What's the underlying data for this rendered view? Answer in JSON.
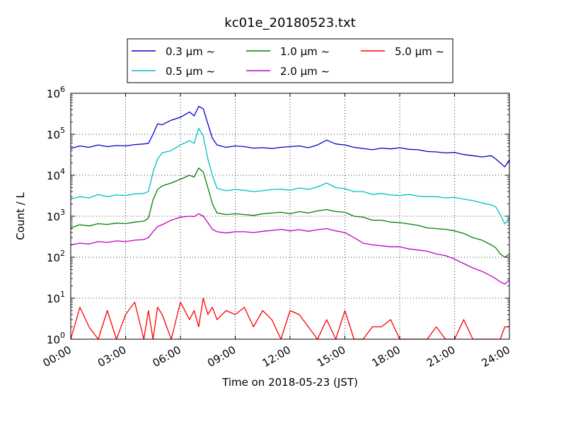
{
  "chart_data": {
    "type": "line",
    "title": "kc01e_20180523.txt",
    "xlabel": "Time on 2018-05-23 (JST)",
    "ylabel": "Count / L",
    "xlim": [
      0,
      24
    ],
    "ylim": [
      1,
      1000000
    ],
    "yscale": "log",
    "grid": true,
    "legend_position": "top",
    "xticks": [
      {
        "value": 0,
        "label": "00:00"
      },
      {
        "value": 3,
        "label": "03:00"
      },
      {
        "value": 6,
        "label": "06:00"
      },
      {
        "value": 9,
        "label": "09:00"
      },
      {
        "value": 12,
        "label": "12:00"
      },
      {
        "value": 15,
        "label": "15:00"
      },
      {
        "value": 18,
        "label": "18:00"
      },
      {
        "value": 21,
        "label": "21:00"
      },
      {
        "value": 24,
        "label": "24:00"
      }
    ],
    "yticks": [
      {
        "value": 1,
        "base": "10",
        "exp": "0"
      },
      {
        "value": 10,
        "base": "10",
        "exp": "1"
      },
      {
        "value": 100,
        "base": "10",
        "exp": "2"
      },
      {
        "value": 1000,
        "base": "10",
        "exp": "3"
      },
      {
        "value": 10000,
        "base": "10",
        "exp": "4"
      },
      {
        "value": 100000,
        "base": "10",
        "exp": "5"
      },
      {
        "value": 1000000,
        "base": "10",
        "exp": "6"
      }
    ],
    "series": [
      {
        "name": "0.3 μm ~",
        "color": "#0000cc",
        "x": [
          0,
          0.5,
          1,
          1.5,
          2,
          2.5,
          3,
          3.5,
          4,
          4.25,
          4.5,
          4.75,
          5,
          5.5,
          6,
          6.5,
          6.75,
          7,
          7.25,
          7.5,
          7.75,
          8,
          8.5,
          9,
          9.5,
          10,
          10.5,
          11,
          11.5,
          12,
          12.5,
          13,
          13.5,
          14,
          14.5,
          15,
          15.5,
          16,
          16.5,
          17,
          17.5,
          18,
          18.5,
          19,
          19.5,
          20,
          20.5,
          21,
          21.5,
          22,
          22.5,
          23,
          23.25,
          23.5,
          23.75,
          24
        ],
        "y": [
          45000,
          52000,
          48000,
          55000,
          50000,
          53000,
          52000,
          56000,
          58000,
          60000,
          100000,
          180000,
          170000,
          220000,
          260000,
          350000,
          280000,
          480000,
          420000,
          180000,
          80000,
          55000,
          48000,
          52000,
          50000,
          46000,
          47000,
          45000,
          48000,
          50000,
          52000,
          47000,
          55000,
          72000,
          58000,
          55000,
          48000,
          45000,
          42000,
          46000,
          44000,
          47000,
          43000,
          42000,
          38000,
          37000,
          35000,
          36000,
          32000,
          30000,
          28000,
          30000,
          25000,
          20000,
          16000,
          24000
        ]
      },
      {
        "name": "0.5 μm ~",
        "color": "#00bfbf",
        "x": [
          0,
          0.5,
          1,
          1.5,
          2,
          2.5,
          3,
          3.5,
          4,
          4.25,
          4.5,
          4.75,
          5,
          5.5,
          6,
          6.5,
          6.75,
          7,
          7.25,
          7.5,
          7.75,
          8,
          8.5,
          9,
          9.5,
          10,
          10.5,
          11,
          11.5,
          12,
          12.5,
          13,
          13.5,
          14,
          14.5,
          15,
          15.5,
          16,
          16.5,
          17,
          17.5,
          18,
          18.5,
          19,
          19.5,
          20,
          20.5,
          21,
          21.5,
          22,
          22.5,
          23,
          23.25,
          23.5,
          23.75,
          24
        ],
        "y": [
          2600,
          3000,
          2800,
          3400,
          3000,
          3300,
          3200,
          3500,
          3600,
          4000,
          12000,
          25000,
          35000,
          40000,
          55000,
          70000,
          60000,
          140000,
          90000,
          25000,
          10000,
          4800,
          4200,
          4500,
          4300,
          4000,
          4200,
          4500,
          4600,
          4300,
          4900,
          4500,
          5200,
          6500,
          5000,
          4700,
          4000,
          4000,
          3400,
          3600,
          3300,
          3200,
          3400,
          3100,
          3000,
          3000,
          2800,
          2900,
          2600,
          2400,
          2100,
          1900,
          1700,
          1100,
          650,
          900
        ]
      },
      {
        "name": "1.0 μm ~",
        "color": "#008000",
        "x": [
          0,
          0.5,
          1,
          1.5,
          2,
          2.5,
          3,
          3.5,
          4,
          4.25,
          4.5,
          4.75,
          5,
          5.5,
          6,
          6.5,
          6.75,
          7,
          7.25,
          7.5,
          7.75,
          8,
          8.5,
          9,
          9.5,
          10,
          10.5,
          11,
          11.5,
          12,
          12.5,
          13,
          13.5,
          14,
          14.5,
          15,
          15.5,
          16,
          16.5,
          17,
          17.5,
          18,
          18.5,
          19,
          19.5,
          20,
          20.5,
          21,
          21.5,
          22,
          22.5,
          23,
          23.25,
          23.5,
          23.75,
          24
        ],
        "y": [
          520,
          620,
          580,
          660,
          630,
          680,
          660,
          720,
          760,
          900,
          2500,
          4500,
          5500,
          6500,
          8000,
          10000,
          9000,
          15000,
          12000,
          5000,
          2000,
          1200,
          1100,
          1150,
          1100,
          1050,
          1150,
          1200,
          1250,
          1150,
          1300,
          1200,
          1350,
          1450,
          1300,
          1250,
          1000,
          950,
          800,
          800,
          720,
          700,
          650,
          600,
          520,
          500,
          480,
          440,
          380,
          300,
          260,
          200,
          170,
          120,
          100,
          120
        ]
      },
      {
        "name": "2.0 μm ~",
        "color": "#bf00bf",
        "x": [
          0,
          0.5,
          1,
          1.5,
          2,
          2.5,
          3,
          3.5,
          4,
          4.25,
          4.5,
          4.75,
          5,
          5.5,
          6,
          6.5,
          6.75,
          7,
          7.25,
          7.5,
          7.75,
          8,
          8.5,
          9,
          9.5,
          10,
          10.5,
          11,
          11.5,
          12,
          12.5,
          13,
          13.5,
          14,
          14.5,
          15,
          15.5,
          16,
          16.5,
          17,
          17.5,
          18,
          18.5,
          19,
          19.5,
          20,
          20.5,
          21,
          21.5,
          22,
          22.5,
          23,
          23.25,
          23.5,
          23.75,
          24
        ],
        "y": [
          200,
          220,
          210,
          240,
          230,
          250,
          240,
          260,
          270,
          300,
          420,
          560,
          620,
          800,
          950,
          1000,
          980,
          1150,
          1000,
          700,
          480,
          420,
          390,
          420,
          420,
          400,
          430,
          450,
          480,
          440,
          470,
          430,
          470,
          500,
          440,
          400,
          300,
          220,
          200,
          190,
          180,
          180,
          160,
          150,
          140,
          120,
          110,
          90,
          70,
          55,
          45,
          35,
          30,
          25,
          22,
          28
        ]
      },
      {
        "name": "5.0 μm ~",
        "color": "#ff0000",
        "x": [
          0,
          0.5,
          1,
          1.5,
          2,
          2.5,
          3,
          3.5,
          4,
          4.25,
          4.5,
          4.75,
          5,
          5.5,
          6,
          6.5,
          6.75,
          7,
          7.25,
          7.5,
          7.75,
          8,
          8.5,
          9,
          9.5,
          10,
          10.5,
          11,
          11.5,
          12,
          12.5,
          13,
          13.5,
          14,
          14.5,
          15,
          15.5,
          16,
          16.5,
          17,
          17.5,
          18,
          18.5,
          19,
          19.5,
          20,
          20.5,
          21,
          21.5,
          22,
          22.5,
          23,
          23.25,
          23.5,
          23.75,
          24
        ],
        "y": [
          1,
          6,
          2,
          1,
          5,
          1,
          4,
          8,
          1,
          5,
          1,
          6,
          4,
          1,
          8,
          3,
          5,
          2,
          10,
          4,
          6,
          3,
          5,
          4,
          6,
          2,
          5,
          3,
          1,
          5,
          4,
          2,
          1,
          3,
          1,
          5,
          1,
          1,
          2,
          2,
          3,
          1,
          1,
          1,
          1,
          2,
          1,
          1,
          3,
          1,
          1,
          1,
          1,
          1,
          2,
          2
        ]
      }
    ]
  }
}
